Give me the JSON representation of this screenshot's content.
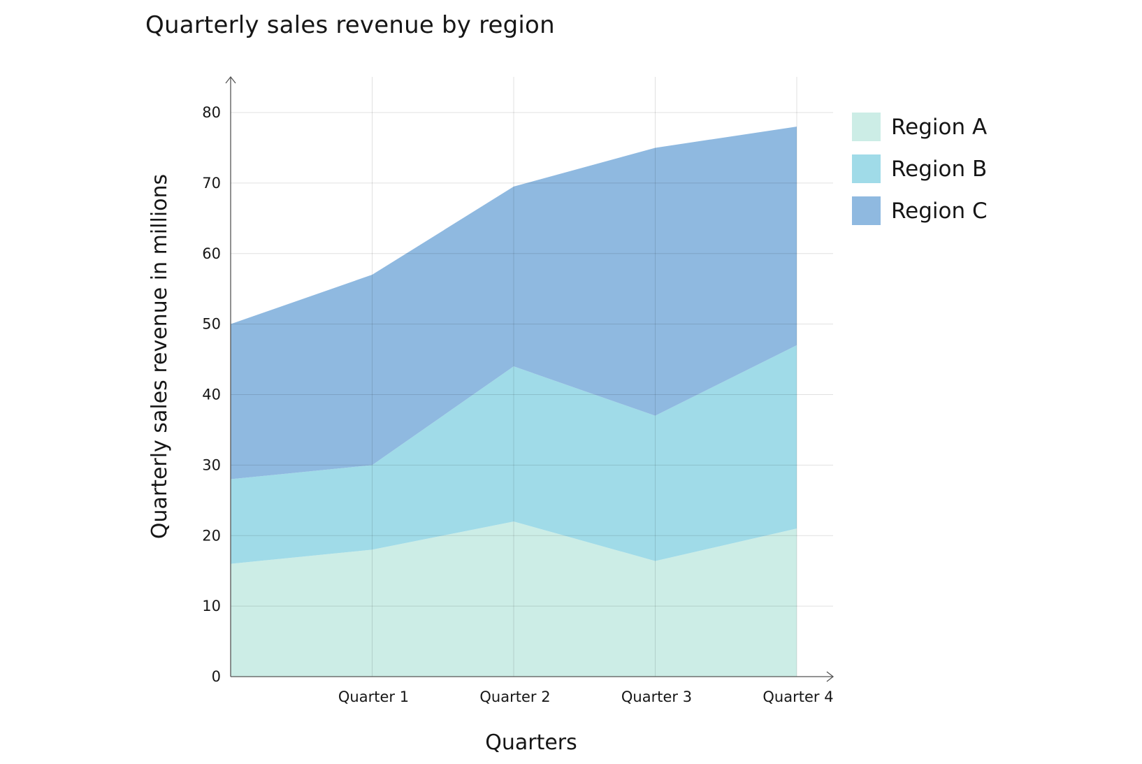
{
  "chart_data": {
    "type": "area",
    "stacked": true,
    "title": "Quarterly sales revenue by region",
    "xlabel": "Quarters",
    "ylabel": "Quarterly sales revenue in millions",
    "x_categories": [
      "",
      "Quarter 1",
      "Quarter 2",
      "Quarter 3",
      "Quarter 4"
    ],
    "ylim": [
      0,
      85
    ],
    "yticks": [
      0,
      10,
      20,
      30,
      40,
      50,
      60,
      70,
      80
    ],
    "grid": true,
    "legend_position": "right",
    "series": [
      {
        "name": "Region A",
        "color": "#ccede6",
        "values": [
          16,
          18,
          22,
          16.4,
          21
        ]
      },
      {
        "name": "Region B",
        "color": "#a0dbe8",
        "values": [
          12,
          12,
          22,
          20.6,
          26
        ]
      },
      {
        "name": "Region C",
        "color": "#8fb9e0",
        "values": [
          22,
          27,
          25.5,
          38,
          31
        ]
      }
    ]
  }
}
